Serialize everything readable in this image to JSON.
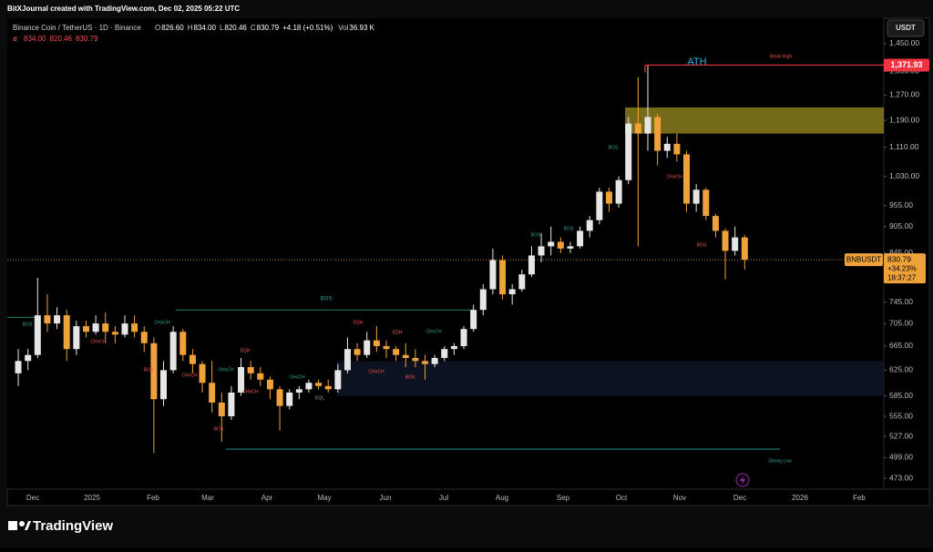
{
  "header": {
    "credit": "BitXJournal created with TradingView.com, Dec 02, 2025 05:22 UTC",
    "symbol": "Binance Coin / TetherUS · 1D · Binance",
    "ohlc": [
      {
        "label": "O",
        "value": "826.60"
      },
      {
        "label": "H",
        "value": "834.00"
      },
      {
        "label": "L",
        "value": "820.46"
      },
      {
        "label": "C",
        "value": "830.79"
      }
    ],
    "change": "+4.18 (+0.51%)",
    "volume_label": "Vol",
    "volume": "36.93 K",
    "indicator_symbol": "ø",
    "indicator_values": [
      "834.00",
      "820.46",
      "830.79"
    ],
    "currency": "USDT"
  },
  "chart_data": {
    "type": "candlestick",
    "log_scale": true,
    "up_color": "#e6e6e6",
    "down_color": "#f0a23a",
    "candles": [
      [
        620,
        660,
        600,
        640
      ],
      [
        640,
        660,
        625,
        650
      ],
      [
        650,
        793,
        645,
        720
      ],
      [
        720,
        760,
        690,
        705
      ],
      [
        705,
        735,
        695,
        720
      ],
      [
        720,
        730,
        640,
        660
      ],
      [
        660,
        710,
        650,
        700
      ],
      [
        700,
        710,
        680,
        690
      ],
      [
        690,
        720,
        685,
        705
      ],
      [
        705,
        725,
        670,
        690
      ],
      [
        690,
        700,
        670,
        685
      ],
      [
        685,
        720,
        680,
        705
      ],
      [
        705,
        720,
        680,
        690
      ],
      [
        690,
        700,
        655,
        670
      ],
      [
        670,
        680,
        505,
        580
      ],
      [
        580,
        640,
        570,
        625
      ],
      [
        625,
        700,
        620,
        690
      ],
      [
        690,
        695,
        640,
        650
      ],
      [
        650,
        660,
        620,
        635
      ],
      [
        635,
        640,
        590,
        605
      ],
      [
        605,
        640,
        560,
        575
      ],
      [
        575,
        590,
        520,
        555
      ],
      [
        555,
        600,
        550,
        590
      ],
      [
        590,
        645,
        585,
        630
      ],
      [
        630,
        640,
        610,
        620
      ],
      [
        620,
        630,
        600,
        610
      ],
      [
        610,
        615,
        580,
        595
      ],
      [
        595,
        600,
        535,
        570
      ],
      [
        570,
        595,
        565,
        590
      ],
      [
        590,
        600,
        580,
        595
      ],
      [
        595,
        610,
        590,
        605
      ],
      [
        605,
        610,
        595,
        600
      ],
      [
        600,
        610,
        590,
        595
      ],
      [
        595,
        635,
        590,
        625
      ],
      [
        625,
        680,
        620,
        660
      ],
      [
        660,
        670,
        640,
        650
      ],
      [
        650,
        690,
        645,
        675
      ],
      [
        675,
        700,
        655,
        665
      ],
      [
        665,
        675,
        645,
        660
      ],
      [
        660,
        665,
        640,
        650
      ],
      [
        650,
        670,
        630,
        645
      ],
      [
        645,
        660,
        630,
        640
      ],
      [
        640,
        650,
        610,
        635
      ],
      [
        635,
        650,
        630,
        645
      ],
      [
        645,
        665,
        640,
        660
      ],
      [
        660,
        670,
        650,
        665
      ],
      [
        665,
        700,
        660,
        695
      ],
      [
        695,
        740,
        690,
        730
      ],
      [
        730,
        780,
        720,
        770
      ],
      [
        770,
        855,
        760,
        830
      ],
      [
        830,
        840,
        750,
        760
      ],
      [
        760,
        780,
        740,
        770
      ],
      [
        770,
        810,
        765,
        800
      ],
      [
        800,
        860,
        795,
        840
      ],
      [
        840,
        890,
        825,
        860
      ],
      [
        860,
        905,
        840,
        870
      ],
      [
        870,
        880,
        845,
        855
      ],
      [
        855,
        870,
        845,
        860
      ],
      [
        860,
        905,
        855,
        895
      ],
      [
        895,
        930,
        880,
        920
      ],
      [
        920,
        1000,
        910,
        990
      ],
      [
        990,
        1000,
        940,
        960
      ],
      [
        960,
        1030,
        950,
        1020
      ],
      [
        1020,
        1200,
        1010,
        1180
      ],
      [
        1180,
        1330,
        860,
        1150
      ],
      [
        1150,
        1370,
        1100,
        1200
      ],
      [
        1200,
        1210,
        1060,
        1100
      ],
      [
        1100,
        1140,
        1080,
        1120
      ],
      [
        1120,
        1150,
        1070,
        1090
      ],
      [
        1090,
        1100,
        940,
        960
      ],
      [
        960,
        1010,
        940,
        995
      ],
      [
        995,
        1000,
        920,
        930
      ],
      [
        930,
        935,
        880,
        895
      ],
      [
        895,
        900,
        790,
        850
      ],
      [
        850,
        905,
        840,
        880
      ],
      [
        880,
        885,
        810,
        830.79
      ]
    ],
    "ylim": [
      460,
      1548
    ],
    "yticks": [
      {
        "value": 1450,
        "label": "1,450.00"
      },
      {
        "value": 1350,
        "label": "1,350.00"
      },
      {
        "value": 1270,
        "label": "1,270.00"
      },
      {
        "value": 1190,
        "label": "1,190.00"
      },
      {
        "value": 1110,
        "label": "1,110.00"
      },
      {
        "value": 1030,
        "label": "1,030.00"
      },
      {
        "value": 955,
        "label": "955.00"
      },
      {
        "value": 905,
        "label": "905.00"
      },
      {
        "value": 845,
        "label": "845.00"
      },
      {
        "value": 745,
        "label": "745.00"
      },
      {
        "value": 705,
        "label": "705.00"
      },
      {
        "value": 665,
        "label": "665.00"
      },
      {
        "value": 625,
        "label": "625.00"
      },
      {
        "value": 585,
        "label": "585.00"
      },
      {
        "value": 555,
        "label": "555.00"
      },
      {
        "value": 527,
        "label": "527.00"
      },
      {
        "value": 499,
        "label": "499.00"
      },
      {
        "value": 473,
        "label": "473.00"
      }
    ],
    "xtick_labels": [
      "Dec",
      "2025",
      "Feb",
      "Mar",
      "Apr",
      "May",
      "Jun",
      "Jul",
      "Aug",
      "Sep",
      "Oct",
      "Nov",
      "Dec",
      "2026",
      "Feb"
    ],
    "ath": {
      "value": 1371.93,
      "label": "1,371.93"
    },
    "supply_zone": [
      1150,
      1230
    ],
    "demand_zone": [
      585,
      640
    ],
    "bos_level": 730,
    "strong_low": 510,
    "last": {
      "symbol": "BNBUSDT",
      "price": 830.79,
      "change": "+34.23%",
      "countdown": "18:37:27"
    },
    "annotations": [
      {
        "text": "BOS",
        "color": "#26a69a"
      },
      {
        "text": "CHoCH",
        "color": "#26a69a"
      },
      {
        "text": "CHoCH",
        "color": "#ef5350"
      },
      {
        "text": "BOS",
        "color": "#ef5350"
      },
      {
        "text": "CHoCH",
        "color": "#ef5350"
      },
      {
        "text": "EQH",
        "color": "#ef5350"
      },
      {
        "text": "CHoCH",
        "color": "#26a69a"
      },
      {
        "text": "CHoCH",
        "color": "#ef5350"
      },
      {
        "text": "BOS",
        "color": "#ef5350"
      },
      {
        "text": "CHoCH",
        "color": "#26a69a"
      },
      {
        "text": "EQL",
        "color": "#9e9e9e"
      },
      {
        "text": "EQH",
        "color": "#ef5350"
      },
      {
        "text": "EQH",
        "color": "#ef5350"
      },
      {
        "text": "CHoCH",
        "color": "#26a69a"
      },
      {
        "text": "CHoCH",
        "color": "#ef5350"
      },
      {
        "text": "BOS",
        "color": "#ef5350"
      },
      {
        "text": "BOS",
        "color": "#26a69a"
      },
      {
        "text": "BOS",
        "color": "#26a69a"
      },
      {
        "text": "BOS",
        "color": "#26a69a"
      },
      {
        "text": "BOS",
        "color": "#26a69a"
      },
      {
        "text": "CHoCH",
        "color": "#ef5350"
      },
      {
        "text": "BOS",
        "color": "#ef5350"
      },
      {
        "text": "ATH",
        "color": "#2bb3d9"
      },
      {
        "text": "Weak High",
        "color": "#ef5350"
      },
      {
        "text": "Strong Low",
        "color": "#26a69a"
      }
    ]
  },
  "footer": {
    "brand": "TradingView"
  }
}
